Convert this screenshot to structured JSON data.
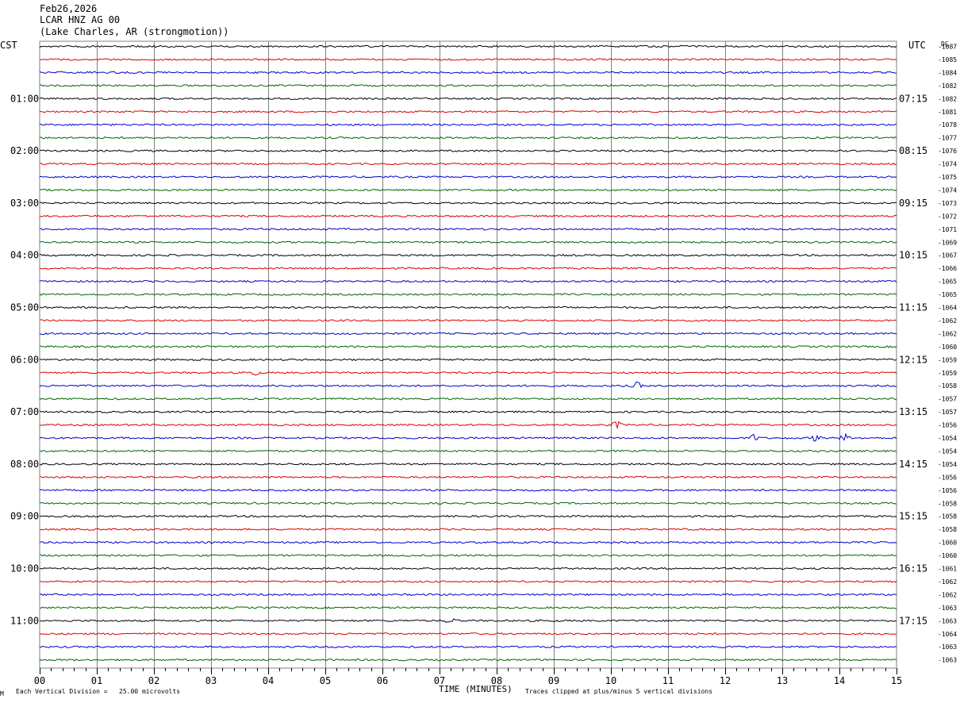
{
  "header": {
    "date": "Feb26,2026",
    "station": "LCAR HNZ AG 00",
    "location": "(Lake Charles, AR (strongmotion))"
  },
  "footer": {
    "scale_note": "Each Vertical Division =   25.00 microvolts",
    "clip_note": "Traces clipped at plus/minus 5 vertical divisions",
    "corner_mark": "M"
  },
  "colors": {
    "trace_cycle": [
      "#000000",
      "#dd0000",
      "#0000cc",
      "#006600"
    ],
    "grid": "#808080"
  },
  "chart_data": {
    "type": "line",
    "title": "",
    "xlabel": "TIME (MINUTES)",
    "xlim": [
      0,
      15
    ],
    "x_ticks": [
      "00",
      "01",
      "02",
      "03",
      "04",
      "05",
      "06",
      "07",
      "08",
      "09",
      "10",
      "11",
      "12",
      "13",
      "14",
      "15"
    ],
    "left_axis_label": "CST",
    "right_axis_label": "UTC",
    "dc_label": "DC",
    "cst_hour_labels": [
      "01:00",
      "02:00",
      "03:00",
      "04:00",
      "05:00",
      "06:00",
      "07:00",
      "08:00",
      "09:00",
      "10:00",
      "11:00"
    ],
    "utc_hour_labels": [
      "07:15",
      "08:15",
      "09:15",
      "10:15",
      "11:15",
      "12:15",
      "13:15",
      "14:15",
      "15:15",
      "16:15",
      "17:15"
    ],
    "hour_label_every_n_rows": 4,
    "hour_label_first_row": 4,
    "dc_offsets": [
      "-1087",
      "-1085",
      "-1084",
      "-1082",
      "-1082",
      "-1081",
      "-1078",
      "-1077",
      "-1076",
      "-1074",
      "-1075",
      "-1074",
      "-1073",
      "-1072",
      "-1071",
      "-1069",
      "-1067",
      "-1066",
      "-1065",
      "-1065",
      "-1064",
      "-1062",
      "-1062",
      "-1060",
      "-1059",
      "-1059",
      "-1058",
      "-1057",
      "-1057",
      "-1056",
      "-1054",
      "-1054",
      "-1054",
      "-1056",
      "-1056",
      "-1058",
      "-1058",
      "-1058",
      "-1060",
      "-1060",
      "-1061",
      "-1062",
      "-1062",
      "-1063",
      "-1063",
      "-1064",
      "-1063",
      "-1063"
    ],
    "grid": true,
    "notable_events": [
      {
        "row": 25,
        "minute": 3.75
      },
      {
        "row": 26,
        "minute": 10.45
      },
      {
        "row": 29,
        "minute": 10.1
      },
      {
        "row": 30,
        "minute": 12.5
      },
      {
        "row": 30,
        "minute": 13.6
      },
      {
        "row": 30,
        "minute": 14.1
      },
      {
        "row": 44,
        "minute": 7.2
      }
    ]
  }
}
